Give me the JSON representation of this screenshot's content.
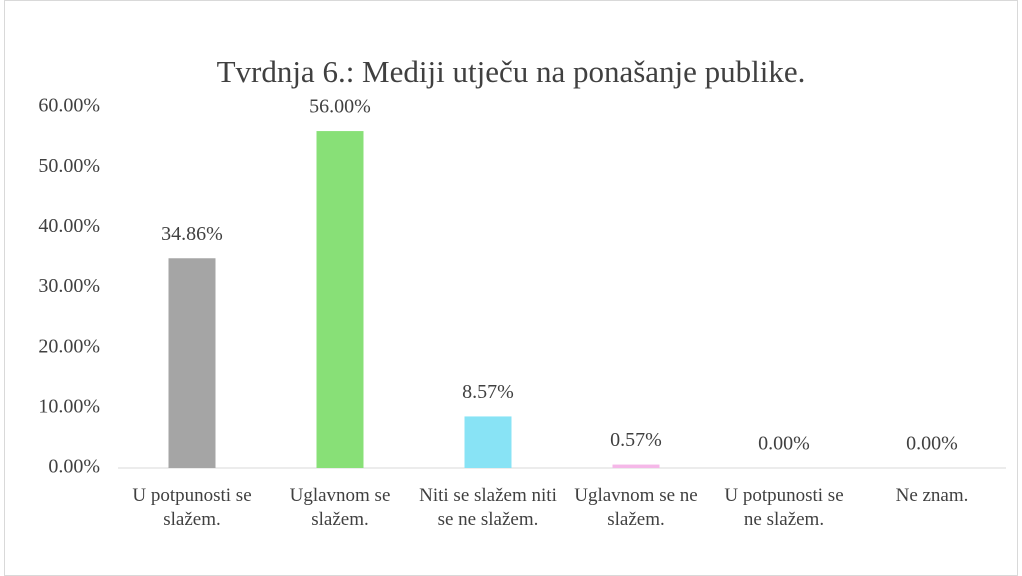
{
  "chart_data": {
    "type": "bar",
    "title": "Tvrdnja 6.: Mediji utječu na ponašanje publike.",
    "categories": [
      "U potpunosti se slažem.",
      "Uglavnom se slažem.",
      "Niti se slažem niti se ne slažem.",
      "Uglavnom se ne slažem.",
      "U potpunosti se ne slažem.",
      "Ne znam."
    ],
    "values": [
      34.86,
      56,
      8.57,
      0.57,
      0,
      0
    ],
    "value_labels": [
      "34.86%",
      "56.00%",
      "8.57%",
      "0.57%",
      "0.00%",
      "0.00%"
    ],
    "colors": [
      "#a5a5a5",
      "#88e077",
      "#88e3f5",
      "#f5b8e8",
      "#f4b183",
      "#bdd7ee"
    ],
    "ylim": [
      0,
      60
    ],
    "yticks": [
      {
        "value": 0,
        "label": "0.00%"
      },
      {
        "value": 10,
        "label": "10.00%"
      },
      {
        "value": 20,
        "label": "20.00%"
      },
      {
        "value": 30,
        "label": "30.00%"
      },
      {
        "value": 40,
        "label": "40.00%"
      },
      {
        "value": 50,
        "label": "50.00%"
      },
      {
        "value": 60,
        "label": "60.00%"
      }
    ],
    "grid": false
  }
}
